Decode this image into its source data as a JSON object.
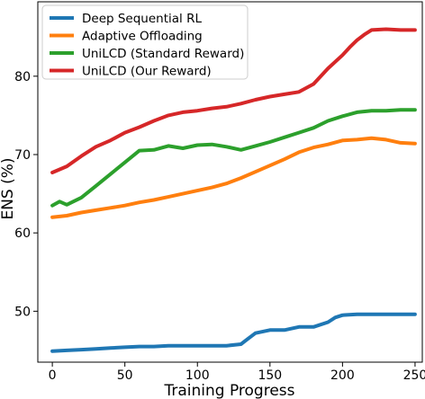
{
  "chart_data": {
    "type": "line",
    "title": "",
    "xlabel": "Training Progress",
    "ylabel": "ENS (%)",
    "xlim": [
      -10,
      255
    ],
    "ylim": [
      43.5,
      89.5
    ],
    "x_ticks": [
      0,
      50,
      100,
      150,
      200,
      250
    ],
    "y_ticks": [
      50,
      60,
      70,
      80
    ],
    "grid": false,
    "legend_position": "upper-left",
    "series": [
      {
        "name": "Deep Sequential RL",
        "color": "#1f77b4",
        "x": [
          0,
          10,
          20,
          30,
          40,
          50,
          60,
          70,
          80,
          90,
          100,
          110,
          120,
          130,
          135,
          140,
          150,
          160,
          170,
          180,
          190,
          195,
          200,
          210,
          220,
          230,
          240,
          250
        ],
        "values": [
          44.9,
          45.0,
          45.1,
          45.2,
          45.3,
          45.4,
          45.5,
          45.5,
          45.6,
          45.6,
          45.6,
          45.6,
          45.6,
          45.8,
          46.5,
          47.2,
          47.6,
          47.6,
          48.0,
          48.0,
          48.6,
          49.2,
          49.5,
          49.6,
          49.6,
          49.6,
          49.6,
          49.6
        ]
      },
      {
        "name": "Adaptive Offloading",
        "color": "#ff7f0e",
        "x": [
          0,
          10,
          20,
          30,
          40,
          50,
          60,
          70,
          80,
          90,
          100,
          110,
          120,
          130,
          140,
          150,
          160,
          170,
          180,
          190,
          200,
          210,
          220,
          230,
          240,
          250
        ],
        "values": [
          62.0,
          62.2,
          62.6,
          62.9,
          63.2,
          63.5,
          63.9,
          64.2,
          64.6,
          65.0,
          65.4,
          65.8,
          66.3,
          67.0,
          67.8,
          68.6,
          69.4,
          70.3,
          70.9,
          71.3,
          71.8,
          71.9,
          72.1,
          71.9,
          71.5,
          71.4
        ]
      },
      {
        "name": "UniLCD (Standard Reward)",
        "color": "#2ca02c",
        "x": [
          0,
          5,
          10,
          20,
          30,
          40,
          50,
          60,
          70,
          80,
          90,
          100,
          110,
          120,
          130,
          140,
          150,
          160,
          170,
          180,
          190,
          200,
          210,
          220,
          230,
          240,
          250
        ],
        "values": [
          63.5,
          64.0,
          63.6,
          64.5,
          66.0,
          67.5,
          69.0,
          70.5,
          70.6,
          71.1,
          70.8,
          71.2,
          71.3,
          71.0,
          70.6,
          71.1,
          71.6,
          72.2,
          72.8,
          73.4,
          74.3,
          74.9,
          75.4,
          75.6,
          75.6,
          75.7,
          75.7
        ]
      },
      {
        "name": "UniLCD (Our Reward)",
        "color": "#d62728",
        "x": [
          0,
          10,
          20,
          30,
          40,
          50,
          60,
          70,
          80,
          90,
          100,
          110,
          120,
          130,
          140,
          150,
          160,
          170,
          180,
          190,
          200,
          205,
          210,
          215,
          220,
          230,
          240,
          250
        ],
        "values": [
          67.7,
          68.5,
          69.8,
          71.0,
          71.8,
          72.8,
          73.5,
          74.3,
          75.0,
          75.4,
          75.6,
          75.9,
          76.1,
          76.5,
          77.0,
          77.4,
          77.7,
          78.0,
          79.0,
          81.0,
          82.7,
          83.7,
          84.6,
          85.3,
          85.9,
          86.0,
          85.9,
          85.9
        ]
      }
    ]
  }
}
